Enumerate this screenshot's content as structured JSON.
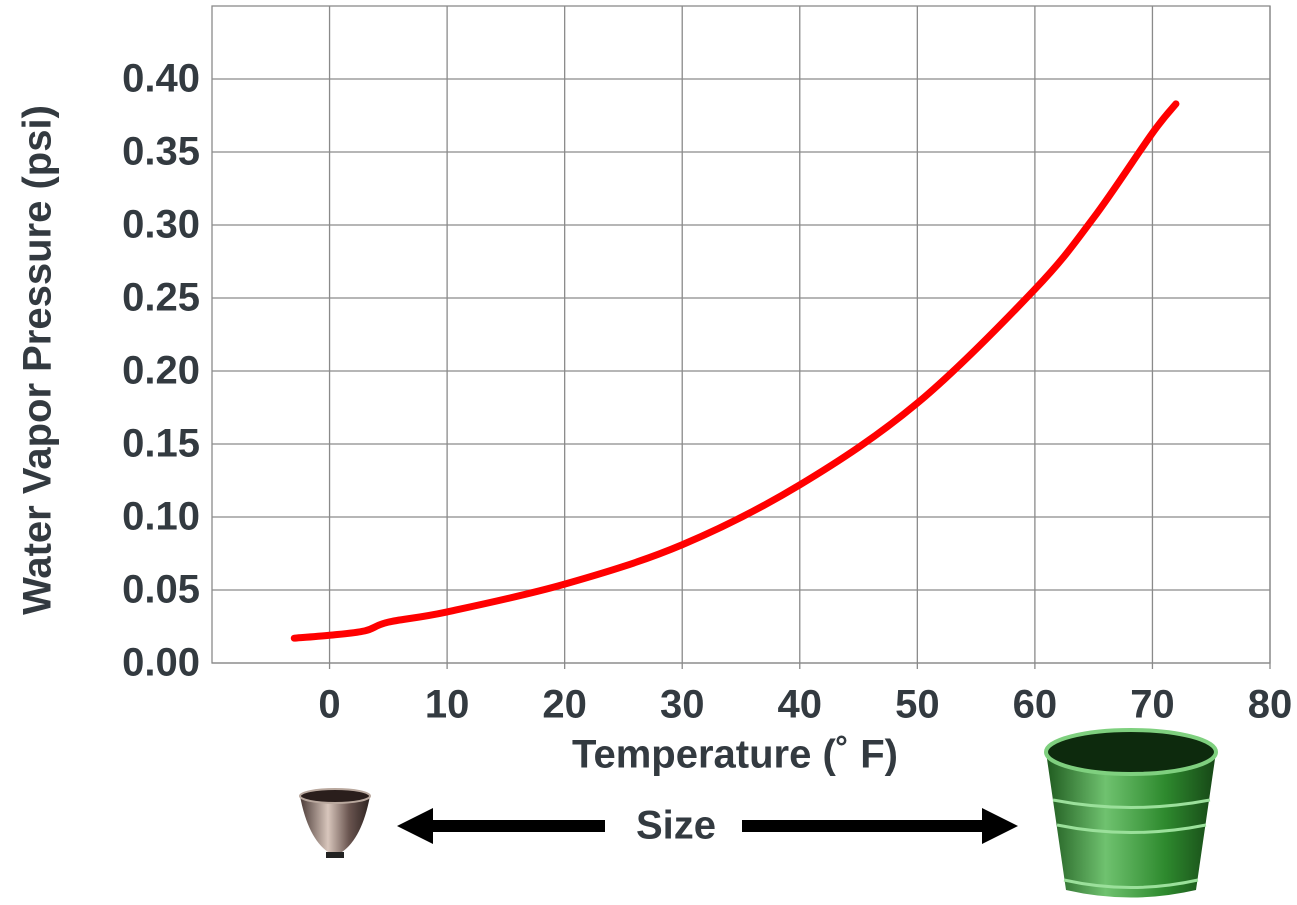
{
  "chart_data": {
    "type": "line",
    "y_label": "Water Vapor Pressure (psi)",
    "x_label": "Temperature (˚ F)",
    "annotation": "Size",
    "x": [
      -3,
      0,
      3,
      5,
      10,
      20,
      30,
      40,
      50,
      60,
      65,
      70,
      72
    ],
    "series": [
      {
        "name": "Water vapor pressure",
        "color": "#ff0000",
        "values": [
          0.017,
          0.019,
          0.022,
          0.028,
          0.035,
          0.054,
          0.081,
          0.122,
          0.178,
          0.256,
          0.305,
          0.363,
          0.383
        ]
      }
    ],
    "xlim": [
      -10,
      80
    ],
    "xticks": [
      0,
      10,
      20,
      30,
      40,
      50,
      60,
      70,
      80
    ],
    "ylim": [
      0,
      0.45
    ],
    "yticks": [
      {
        "value": 0,
        "label": "0.00"
      },
      {
        "value": 0.05,
        "label": "0.05"
      },
      {
        "value": 0.1,
        "label": "0.10"
      },
      {
        "value": 0.15,
        "label": "0.15"
      },
      {
        "value": 0.2,
        "label": "0.20"
      },
      {
        "value": 0.25,
        "label": "0.25"
      },
      {
        "value": 0.3,
        "label": "0.30"
      },
      {
        "value": 0.35,
        "label": "0.35"
      },
      {
        "value": 0.4,
        "label": "0.40"
      }
    ],
    "grid": true
  }
}
